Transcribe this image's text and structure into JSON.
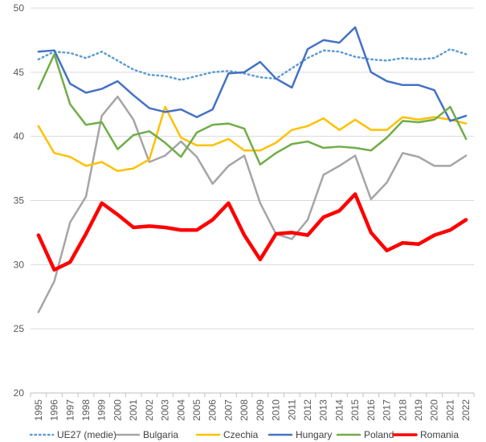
{
  "chart_data": {
    "type": "line",
    "title": "",
    "xlabel": "",
    "ylabel": "",
    "ylim": [
      20,
      50
    ],
    "yticks": [
      20,
      25,
      30,
      35,
      40,
      45,
      50
    ],
    "grid": "horizontal",
    "legend_position": "bottom",
    "x": [
      "1995",
      "1996",
      "1997",
      "1998",
      "1999",
      "2000",
      "2001",
      "2002",
      "2003",
      "2004",
      "2005",
      "2006",
      "2007",
      "2008",
      "2009",
      "2010",
      "2011",
      "2012",
      "2013",
      "2014",
      "2015",
      "2016",
      "2017",
      "2018",
      "2019",
      "2020",
      "2021",
      "2022"
    ],
    "series": [
      {
        "name": "UE27 (medie)",
        "color": "#5b9bd5",
        "style": "dotted",
        "width": 2.5,
        "values": [
          46.0,
          46.6,
          46.5,
          46.1,
          46.6,
          45.9,
          45.2,
          44.8,
          44.7,
          44.4,
          44.7,
          45.0,
          45.1,
          44.9,
          44.6,
          44.5,
          45.3,
          46.1,
          46.7,
          46.6,
          46.2,
          46.0,
          45.9,
          46.1,
          46.0,
          46.1,
          46.8,
          46.4
        ]
      },
      {
        "name": "Bulgaria",
        "color": "#a5a5a5",
        "style": "solid",
        "width": 2.5,
        "values": [
          26.3,
          28.7,
          33.3,
          35.3,
          41.6,
          43.1,
          41.3,
          38.0,
          38.5,
          39.6,
          38.4,
          36.3,
          37.7,
          38.5,
          34.8,
          32.4,
          32.0,
          33.5,
          37.0,
          37.7,
          38.5,
          35.1,
          36.4,
          38.7,
          38.4,
          37.7,
          37.7,
          38.5
        ]
      },
      {
        "name": "Czechia",
        "color": "#ffc000",
        "style": "solid",
        "width": 2.5,
        "values": [
          40.8,
          38.7,
          38.4,
          37.7,
          38.0,
          37.3,
          37.5,
          38.2,
          42.3,
          39.9,
          39.3,
          39.3,
          39.8,
          38.9,
          38.9,
          39.5,
          40.5,
          40.8,
          41.4,
          40.5,
          41.3,
          40.5,
          40.5,
          41.5,
          41.3,
          41.5,
          41.3,
          41.0
        ]
      },
      {
        "name": "Hungary",
        "color": "#4472c4",
        "style": "solid",
        "width": 2.5,
        "values": [
          46.6,
          46.7,
          44.1,
          43.4,
          43.7,
          44.3,
          43.2,
          42.2,
          41.9,
          42.1,
          41.5,
          42.1,
          44.9,
          45.0,
          45.8,
          44.5,
          43.8,
          46.8,
          47.5,
          47.3,
          48.5,
          45.0,
          44.3,
          44.0,
          44.0,
          43.6,
          41.2,
          41.6
        ]
      },
      {
        "name": "Poland",
        "color": "#70ad47",
        "style": "solid",
        "width": 2.5,
        "values": [
          43.7,
          46.4,
          42.5,
          40.9,
          41.1,
          39.0,
          40.1,
          40.4,
          39.5,
          38.4,
          40.3,
          40.9,
          41.0,
          40.6,
          37.8,
          38.7,
          39.4,
          39.6,
          39.1,
          39.2,
          39.1,
          38.9,
          39.9,
          41.2,
          41.1,
          41.3,
          42.3,
          39.8
        ]
      },
      {
        "name": "Romania",
        "color": "#ff0000",
        "style": "solid",
        "width": 4.5,
        "values": [
          32.3,
          29.6,
          30.2,
          32.4,
          34.8,
          33.9,
          32.9,
          33.0,
          32.9,
          32.7,
          32.7,
          33.5,
          34.8,
          32.3,
          30.4,
          32.4,
          32.5,
          32.3,
          33.7,
          34.2,
          35.5,
          32.5,
          31.1,
          31.7,
          31.6,
          32.3,
          32.7,
          33.5
        ]
      }
    ]
  }
}
